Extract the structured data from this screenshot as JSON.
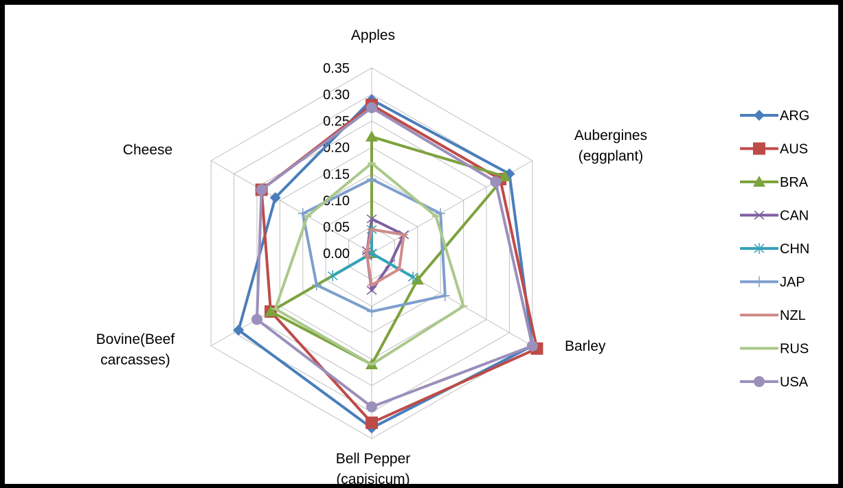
{
  "chart_data": {
    "type": "radar",
    "categories": [
      "Apples",
      "Aubergines (eggplant)",
      "Barley",
      "Bell Pepper (capisicum)",
      "Bovine(Beef carcasses)",
      "Cheese"
    ],
    "category_label_lines": [
      [
        "Apples"
      ],
      [
        "Aubergines",
        "(eggplant)"
      ],
      [
        "Barley"
      ],
      [
        "Bell Pepper",
        "(capisicum)"
      ],
      [
        "Bovine(Beef",
        "carcasses)"
      ],
      [
        "Cheese"
      ]
    ],
    "rlim": [
      0,
      0.35
    ],
    "ticks": [
      "0.00",
      "0.05",
      "0.10",
      "0.15",
      "0.20",
      "0.25",
      "0.30",
      "0.35"
    ],
    "grid": true,
    "legend_position": "right",
    "series": [
      {
        "name": "ARG",
        "color": "#4a7ebb",
        "marker": "diamond",
        "values": [
          0.29,
          0.3,
          0.35,
          0.33,
          0.29,
          0.21
        ]
      },
      {
        "name": "AUS",
        "color": "#be4b48",
        "marker": "square",
        "values": [
          0.28,
          0.28,
          0.36,
          0.32,
          0.22,
          0.24
        ]
      },
      {
        "name": "BRA",
        "color": "#7da33d",
        "marker": "triangle",
        "values": [
          0.22,
          0.29,
          0.1,
          0.21,
          0.22,
          0.0
        ]
      },
      {
        "name": "CAN",
        "color": "#7f5fa1",
        "marker": "x",
        "values": [
          0.065,
          0.07,
          0.04,
          0.07,
          0.01,
          0.01
        ]
      },
      {
        "name": "CHN",
        "color": "#35a2b8",
        "marker": "asterisk",
        "values": [
          0.045,
          0.0,
          0.09,
          0.0,
          0.085,
          0.0
        ]
      },
      {
        "name": "JAP",
        "color": "#7e9fcd",
        "marker": "plus",
        "values": [
          0.14,
          0.15,
          0.16,
          0.11,
          0.12,
          0.15
        ]
      },
      {
        "name": "NZL",
        "color": "#d08c8a",
        "marker": "dash",
        "values": [
          0.045,
          0.07,
          0.06,
          0.06,
          0.01,
          0.01
        ]
      },
      {
        "name": "RUS",
        "color": "#abc88b",
        "marker": "dash",
        "values": [
          0.17,
          0.14,
          0.2,
          0.21,
          0.21,
          0.14
        ]
      },
      {
        "name": "USA",
        "color": "#9b8fbb",
        "marker": "circle",
        "values": [
          0.275,
          0.27,
          0.35,
          0.29,
          0.25,
          0.24
        ]
      }
    ]
  }
}
